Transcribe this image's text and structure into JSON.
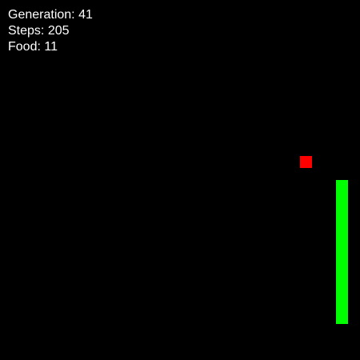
{
  "hud": {
    "generation_label": "Generation:",
    "generation": "41",
    "steps_label": "Steps:",
    "steps": "205",
    "food_label": "Food:",
    "food": "11"
  },
  "colors": {
    "background": "#000000",
    "text": "#ffffff",
    "snake": "#00ff00",
    "food": "#ff0000"
  }
}
